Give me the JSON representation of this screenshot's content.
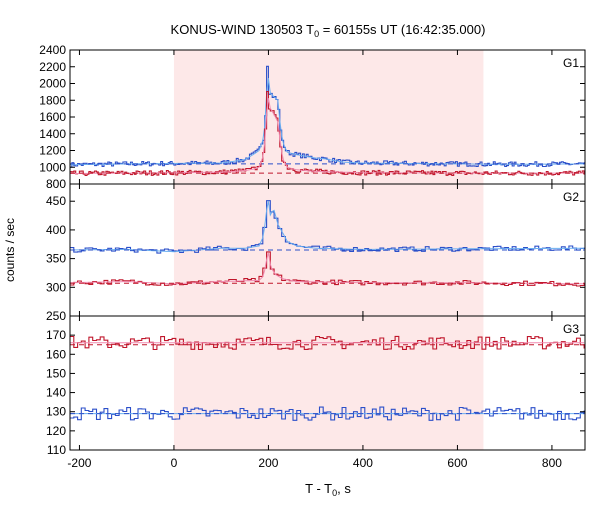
{
  "figure": {
    "title_main": "KONUS-WIND 130503 T",
    "title_sub": "0",
    "title_rest": " = 60155s UT (16:42:35.000)",
    "ylabel": "counts / sec",
    "xlabel_main": "T - T",
    "xlabel_sub": "0",
    "xlabel_rest": ", s"
  },
  "chart_data": {
    "type": "line",
    "title": "KONUS-WIND 130503 T0 = 60155s UT (16:42:35.000)",
    "xlabel": "T - T0, s",
    "ylabel": "counts / sec",
    "xlim": [
      -220,
      870
    ],
    "xticks": [
      -200,
      0,
      200,
      400,
      600,
      800
    ],
    "shaded_interval": [
      0,
      655
    ],
    "shade_color": "#fde8e8",
    "panels": [
      {
        "name": "G1",
        "ylim": [
          800,
          2400
        ],
        "yticks": [
          800,
          1000,
          1200,
          1400,
          1600,
          1800,
          2000,
          2200,
          2400
        ],
        "series": [
          {
            "color": "#2b4fc9",
            "fit_color": "#6aaef0",
            "background_level": 1040,
            "points": [
              [
                -220,
                1030
              ],
              [
                -100,
                1040
              ],
              [
                0,
                1045
              ],
              [
                100,
                1050
              ],
              [
                150,
                1090
              ],
              [
                170,
                1160
              ],
              [
                180,
                1200
              ],
              [
                190,
                1350
              ],
              [
                195,
                1700
              ],
              [
                198,
                2230
              ],
              [
                202,
                1900
              ],
              [
                210,
                1850
              ],
              [
                220,
                1800
              ],
              [
                225,
                1500
              ],
              [
                230,
                1300
              ],
              [
                240,
                1180
              ],
              [
                260,
                1150
              ],
              [
                300,
                1110
              ],
              [
                320,
                1100
              ],
              [
                340,
                1080
              ],
              [
                360,
                1060
              ],
              [
                400,
                1050
              ],
              [
                500,
                1045
              ],
              [
                600,
                1040
              ],
              [
                700,
                1035
              ],
              [
                870,
                1040
              ]
            ]
          },
          {
            "color": "#c0162b",
            "fit_color": "#f08ab0",
            "background_level": 930,
            "points": [
              [
                -220,
                925
              ],
              [
                -100,
                930
              ],
              [
                0,
                935
              ],
              [
                100,
                940
              ],
              [
                150,
                960
              ],
              [
                170,
                980
              ],
              [
                180,
                1000
              ],
              [
                190,
                1150
              ],
              [
                195,
                1500
              ],
              [
                198,
                1930
              ],
              [
                202,
                1720
              ],
              [
                210,
                1650
              ],
              [
                220,
                1540
              ],
              [
                225,
                1300
              ],
              [
                230,
                1100
              ],
              [
                240,
                1000
              ],
              [
                260,
                970
              ],
              [
                300,
                950
              ],
              [
                400,
                935
              ],
              [
                600,
                930
              ],
              [
                870,
                930
              ]
            ]
          }
        ]
      },
      {
        "name": "G2",
        "ylim": [
          250,
          480
        ],
        "yticks": [
          250,
          300,
          350,
          400,
          450
        ],
        "series": [
          {
            "color": "#2b4fc9",
            "fit_color": "#6aaef0",
            "background_level": 365,
            "points": [
              [
                -220,
                365
              ],
              [
                -100,
                366
              ],
              [
                0,
                362
              ],
              [
                100,
                368
              ],
              [
                150,
                368
              ],
              [
                180,
                372
              ],
              [
                190,
                390
              ],
              [
                195,
                430
              ],
              [
                200,
                450
              ],
              [
                205,
                420
              ],
              [
                210,
                440
              ],
              [
                220,
                410
              ],
              [
                230,
                395
              ],
              [
                240,
                380
              ],
              [
                260,
                372
              ],
              [
                300,
                368
              ],
              [
                400,
                366
              ],
              [
                600,
                367
              ],
              [
                870,
                368
              ]
            ]
          },
          {
            "color": "#c0162b",
            "fit_color": "#f08ab0",
            "background_level": 307,
            "points": [
              [
                -220,
                308
              ],
              [
                -100,
                310
              ],
              [
                0,
                306
              ],
              [
                100,
                310
              ],
              [
                180,
                312
              ],
              [
                190,
                320
              ],
              [
                195,
                345
              ],
              [
                200,
                360
              ],
              [
                205,
                335
              ],
              [
                215,
                322
              ],
              [
                230,
                315
              ],
              [
                260,
                310
              ],
              [
                400,
                308
              ],
              [
                600,
                308
              ],
              [
                870,
                306
              ]
            ]
          }
        ]
      },
      {
        "name": "G3",
        "ylim": [
          110,
          180
        ],
        "yticks": [
          110,
          120,
          130,
          140,
          150,
          160,
          170,
          180
        ],
        "series": [
          {
            "color": "#c0162b",
            "fit_color": "#f08ab0",
            "background_level": 165,
            "points": [
              [
                -220,
                166
              ],
              [
                870,
                166
              ]
            ]
          },
          {
            "color": "#2b4fc9",
            "fit_color": "#6aaef0",
            "background_level": 129,
            "points": [
              [
                -220,
                129
              ],
              [
                870,
                129
              ]
            ]
          }
        ]
      }
    ]
  }
}
